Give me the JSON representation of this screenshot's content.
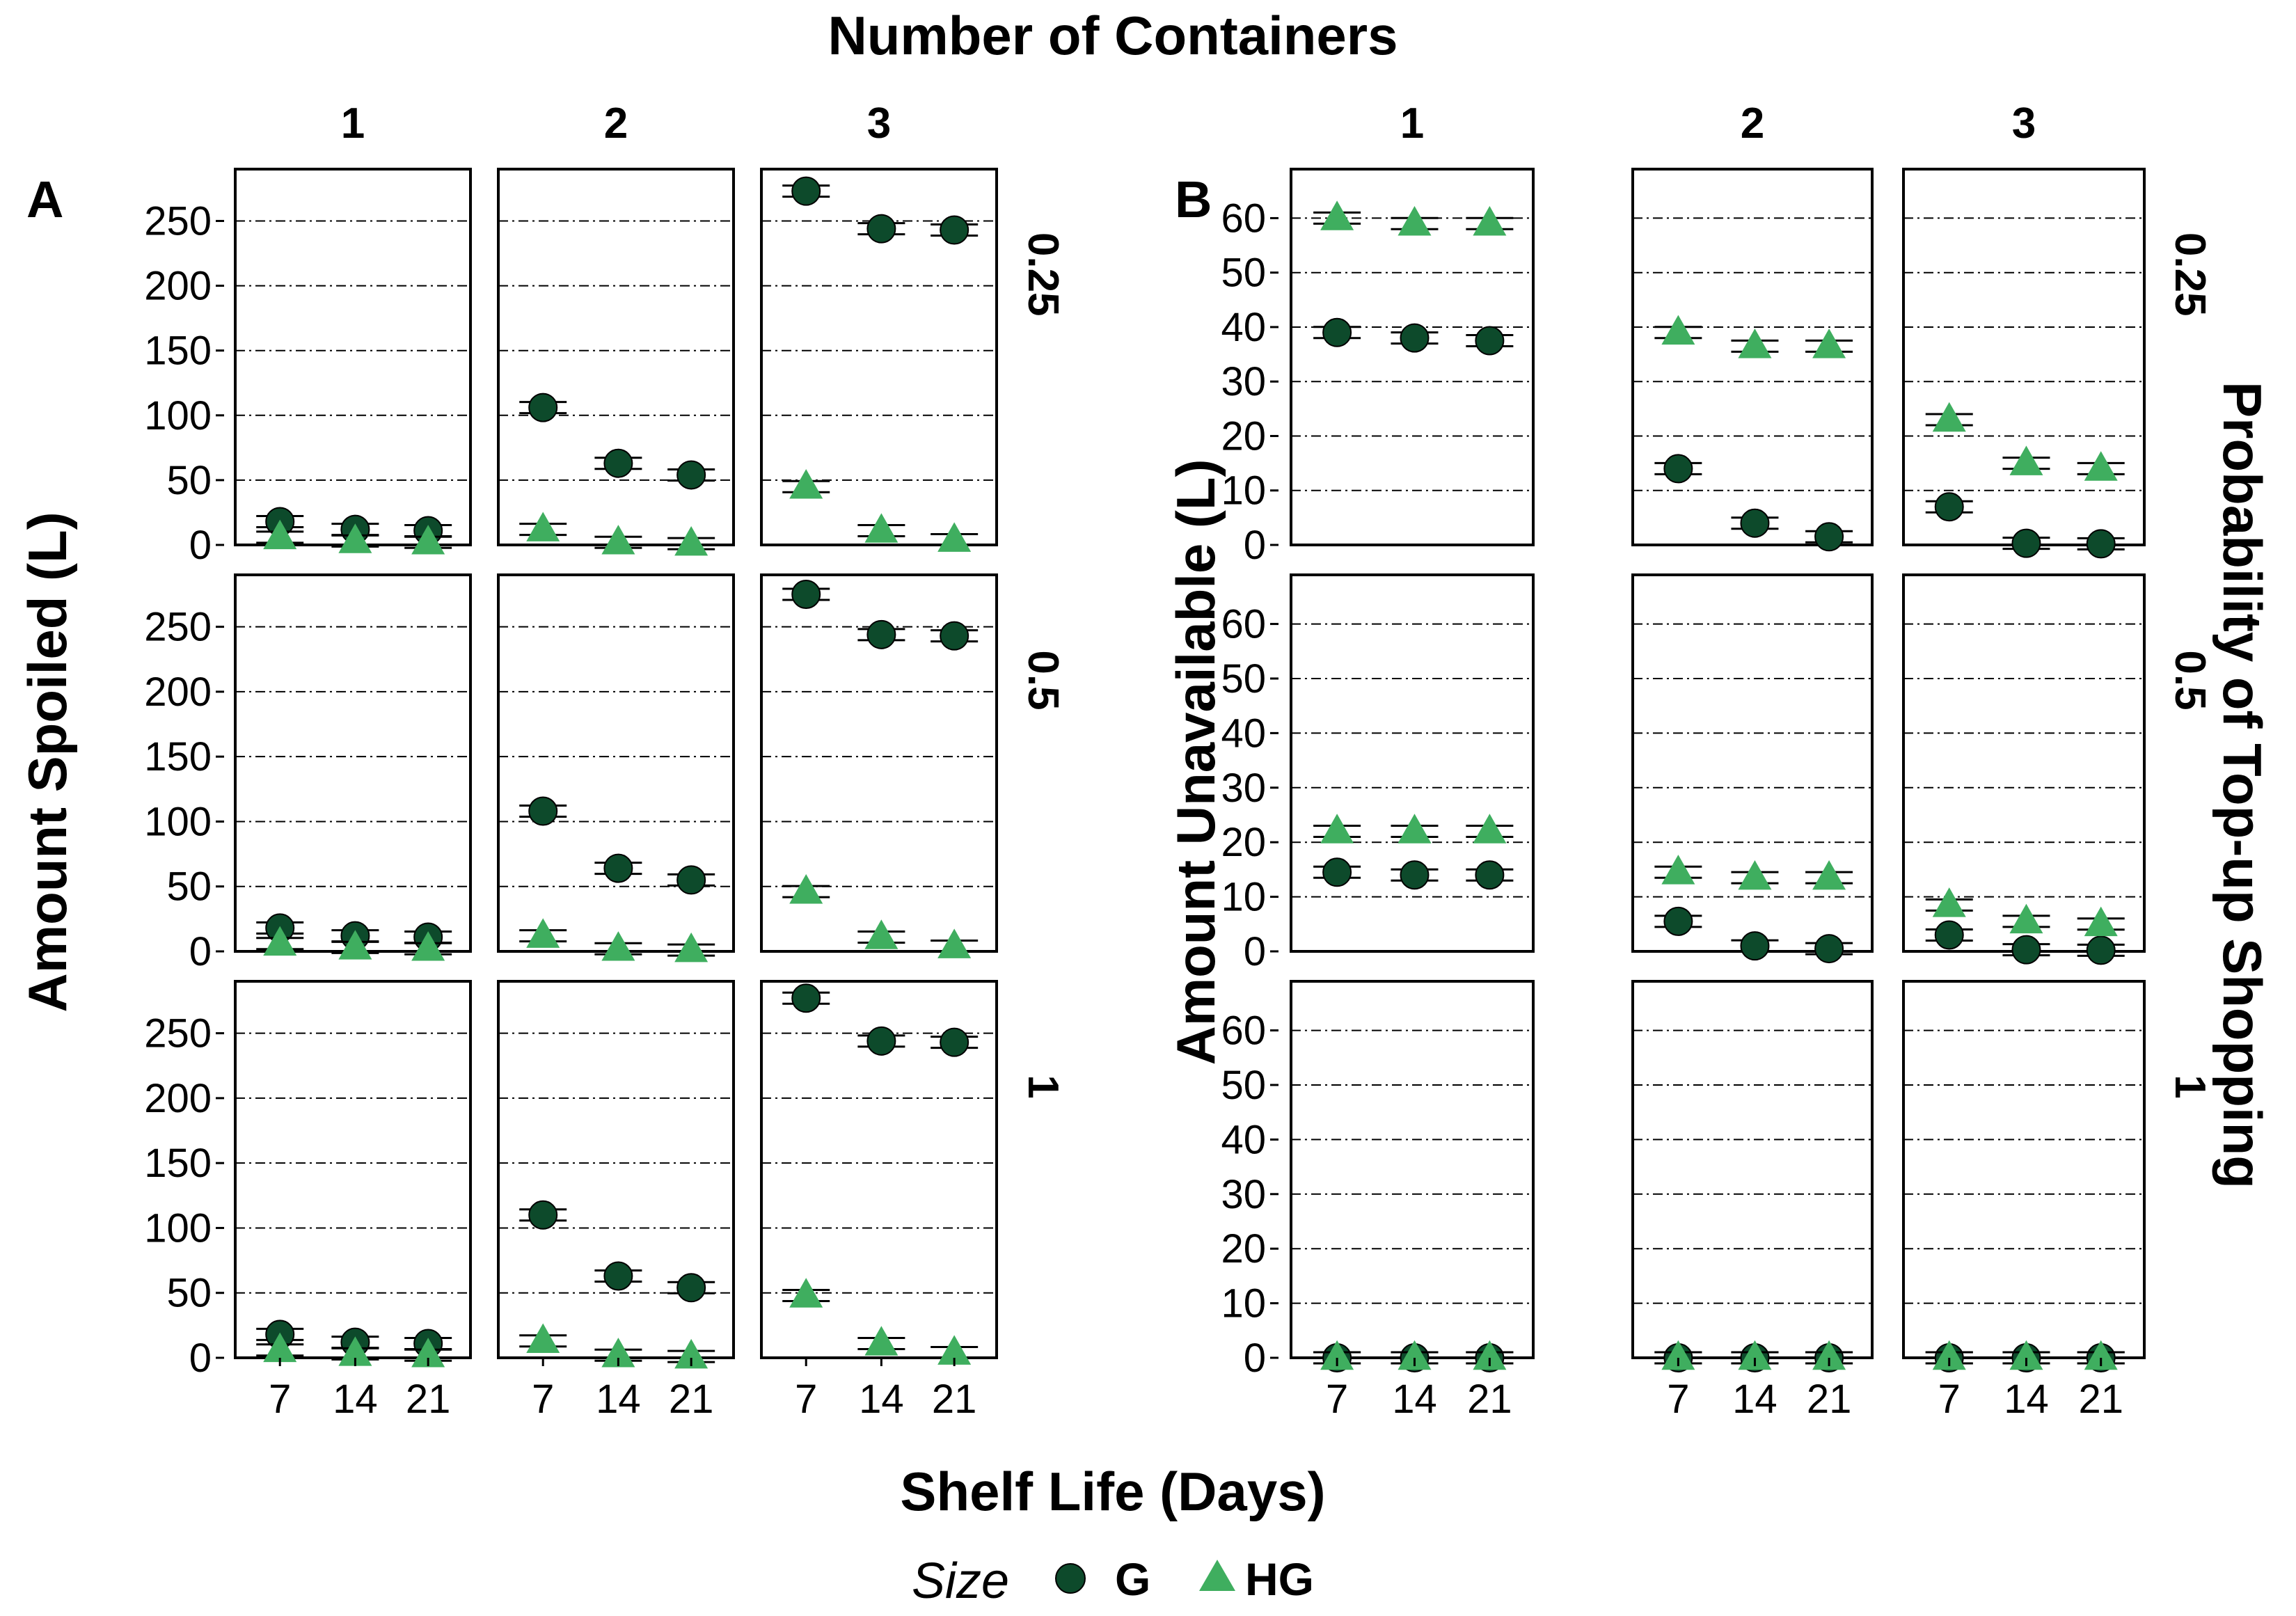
{
  "figure_title": "Number of Containers",
  "x_axis_title": "Shelf Life (Days)",
  "right_axis_title": "Probability of Top-up Shopping",
  "legend": {
    "title": "Size",
    "items": [
      {
        "label": "G",
        "shape": "circle",
        "color": "#0d4a2b"
      },
      {
        "label": "HG",
        "shape": "triangle",
        "color": "#3fae5f"
      }
    ]
  },
  "chart_data": [
    {
      "panel": "A",
      "type": "scatter",
      "title": "Number of Containers",
      "xlabel": "Shelf Life (Days)",
      "ylabel": "Amount Spoiled (L)",
      "col_facet_labels": [
        "1",
        "2",
        "3"
      ],
      "row_facet_labels": [
        "0.25",
        "0.5",
        "1"
      ],
      "x": [
        "7",
        "14",
        "21"
      ],
      "ylim": [
        0,
        290
      ],
      "yticks": [
        0,
        50,
        100,
        150,
        200,
        250
      ],
      "series": [
        {
          "name": "G",
          "values": [
            [
              [
                18,
                12,
                11
              ],
              [
                106,
                63,
                54
              ],
              [
                273,
                244,
                243
              ]
            ],
            [
              [
                18,
                12,
                11
              ],
              [
                108,
                64,
                55
              ],
              [
                275,
                244,
                243
              ]
            ],
            [
              [
                18,
                12,
                11
              ],
              [
                110,
                63,
                54
              ],
              [
                277,
                244,
                243
              ]
            ]
          ]
        },
        {
          "name": "HG",
          "values": [
            [
              [
                6,
                3,
                2
              ],
              [
                12,
                2,
                1
              ],
              [
                45,
                11,
                4
              ]
            ],
            [
              [
                6,
                3,
                2
              ],
              [
                12,
                2,
                1
              ],
              [
                46,
                11,
                4
              ]
            ],
            [
              [
                6,
                3,
                2
              ],
              [
                13,
                2,
                1
              ],
              [
                48,
                11,
                4
              ]
            ]
          ]
        }
      ]
    },
    {
      "panel": "B",
      "type": "scatter",
      "title": "Number of Containers",
      "xlabel": "Shelf Life (Days)",
      "ylabel": "Amount Unavailable (L)",
      "col_facet_labels": [
        "1",
        "2",
        "3"
      ],
      "row_facet_labels": [
        "0.25",
        "0.5",
        "1"
      ],
      "x": [
        "7",
        "14",
        "21"
      ],
      "ylim": [
        0,
        69
      ],
      "yticks": [
        0,
        10,
        20,
        30,
        40,
        50,
        60
      ],
      "series": [
        {
          "name": "G",
          "values": [
            [
              [
                39,
                38,
                37.5
              ],
              [
                14,
                4,
                1.5
              ],
              [
                7,
                0.3,
                0.2
              ]
            ],
            [
              [
                14.5,
                14,
                14
              ],
              [
                5.5,
                1,
                0.5
              ],
              [
                3,
                0.3,
                0.2
              ]
            ],
            [
              [
                0,
                0,
                0
              ],
              [
                0,
                0,
                0
              ],
              [
                0,
                0,
                0
              ]
            ]
          ]
        },
        {
          "name": "HG",
          "values": [
            [
              [
                60,
                59,
                59
              ],
              [
                39,
                36.5,
                36.5
              ],
              [
                23,
                15,
                14
              ]
            ],
            [
              [
                22,
                22,
                22
              ],
              [
                14.5,
                13.5,
                13.5
              ],
              [
                8.5,
                5.5,
                5
              ]
            ],
            [
              [
                0,
                0,
                0
              ],
              [
                0,
                0,
                0
              ],
              [
                0,
                0,
                0
              ]
            ]
          ]
        }
      ]
    }
  ]
}
